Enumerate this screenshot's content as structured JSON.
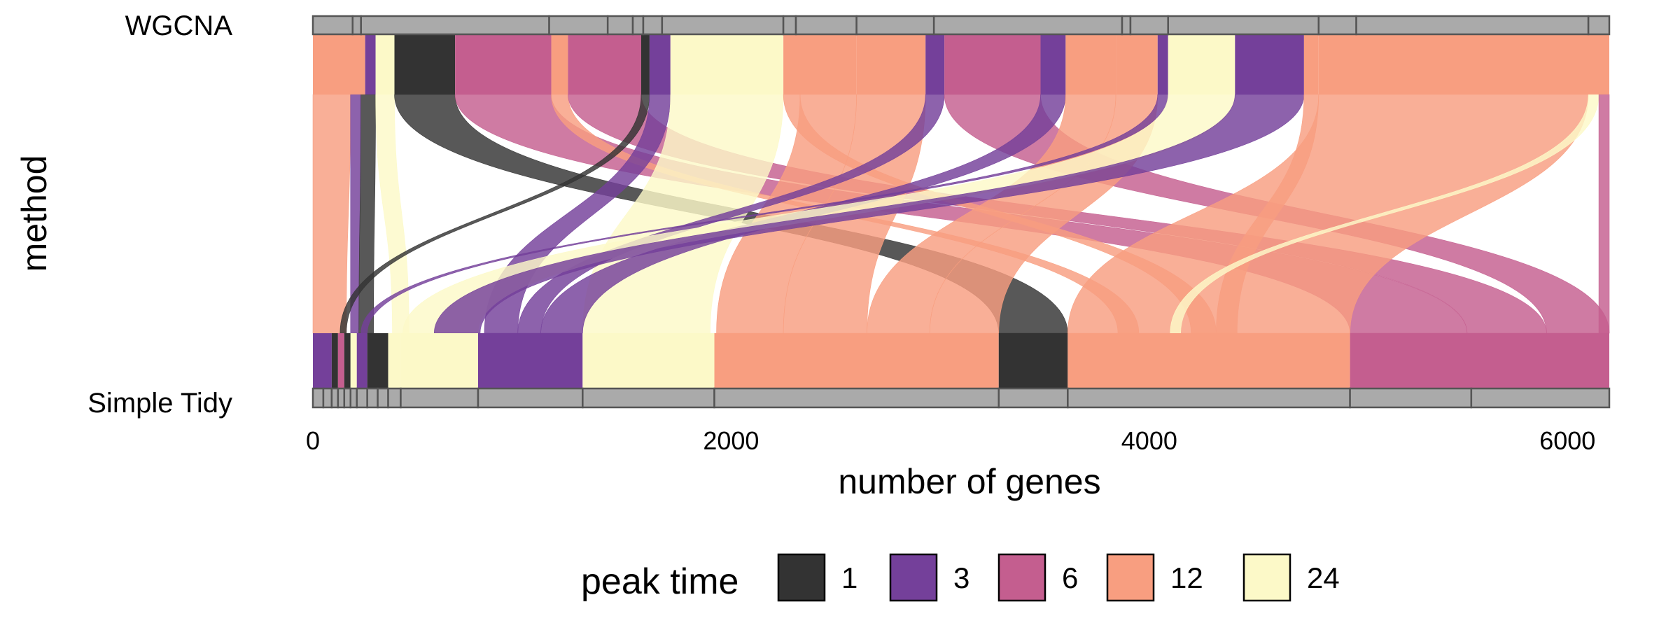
{
  "chart_data": {
    "type": "alluvial",
    "ylabel": "method",
    "xlabel": "number of genes",
    "strata": [
      "WGCNA",
      "Simple Tidy"
    ],
    "x_ticks": [
      0,
      2000,
      4000,
      6000
    ],
    "xlim": [
      0,
      6200
    ],
    "total_genes": 6200,
    "legend": {
      "title": "peak time",
      "placement": "bottom",
      "items": [
        {
          "label": "1",
          "color": "#333333"
        },
        {
          "label": "3",
          "color": "#74409a"
        },
        {
          "label": "6",
          "color": "#c45e8f"
        },
        {
          "label": "12",
          "color": "#f89e80"
        },
        {
          "label": "24",
          "color": "#fcf9c8"
        }
      ]
    },
    "top_modules": [
      {
        "x0": 0,
        "x1": 190
      },
      {
        "x0": 190,
        "x1": 230
      },
      {
        "x0": 230,
        "x1": 1130
      },
      {
        "x0": 1130,
        "x1": 1410
      },
      {
        "x0": 1410,
        "x1": 1530
      },
      {
        "x0": 1530,
        "x1": 1580
      },
      {
        "x0": 1580,
        "x1": 1670
      },
      {
        "x0": 1670,
        "x1": 2250
      },
      {
        "x0": 2250,
        "x1": 2310
      },
      {
        "x0": 2310,
        "x1": 2600
      },
      {
        "x0": 2600,
        "x1": 2970
      },
      {
        "x0": 2970,
        "x1": 3870
      },
      {
        "x0": 3870,
        "x1": 3910
      },
      {
        "x0": 3910,
        "x1": 4090
      },
      {
        "x0": 4090,
        "x1": 4810
      },
      {
        "x0": 4810,
        "x1": 4990
      },
      {
        "x0": 4990,
        "x1": 6100
      },
      {
        "x0": 6100,
        "x1": 6200
      }
    ],
    "bottom_modules": [
      {
        "x0": 0,
        "x1": 50
      },
      {
        "x0": 50,
        "x1": 90
      },
      {
        "x0": 90,
        "x1": 120
      },
      {
        "x0": 120,
        "x1": 150
      },
      {
        "x0": 150,
        "x1": 180
      },
      {
        "x0": 180,
        "x1": 210
      },
      {
        "x0": 210,
        "x1": 260
      },
      {
        "x0": 260,
        "x1": 310
      },
      {
        "x0": 310,
        "x1": 360
      },
      {
        "x0": 360,
        "x1": 420
      },
      {
        "x0": 420,
        "x1": 790
      },
      {
        "x0": 790,
        "x1": 1290
      },
      {
        "x0": 1290,
        "x1": 1920
      },
      {
        "x0": 1920,
        "x1": 3280
      },
      {
        "x0": 3280,
        "x1": 3610
      },
      {
        "x0": 3610,
        "x1": 4960
      },
      {
        "x0": 4960,
        "x1": 5540
      },
      {
        "x0": 5540,
        "x1": 6200
      }
    ],
    "top_color_segments": [
      {
        "x0": 0,
        "x1": 250,
        "peak": "12"
      },
      {
        "x0": 250,
        "x1": 300,
        "peak": "3"
      },
      {
        "x0": 300,
        "x1": 390,
        "peak": "24"
      },
      {
        "x0": 390,
        "x1": 680,
        "peak": "1"
      },
      {
        "x0": 680,
        "x1": 1140,
        "peak": "6"
      },
      {
        "x0": 1140,
        "x1": 1220,
        "peak": "12"
      },
      {
        "x0": 1220,
        "x1": 1570,
        "peak": "6"
      },
      {
        "x0": 1570,
        "x1": 1610,
        "peak": "1"
      },
      {
        "x0": 1610,
        "x1": 1710,
        "peak": "3"
      },
      {
        "x0": 1710,
        "x1": 2250,
        "peak": "24"
      },
      {
        "x0": 2250,
        "x1": 2330,
        "peak": "12"
      },
      {
        "x0": 2330,
        "x1": 2600,
        "peak": "12"
      },
      {
        "x0": 2600,
        "x1": 2930,
        "peak": "12"
      },
      {
        "x0": 2930,
        "x1": 3020,
        "peak": "3"
      },
      {
        "x0": 3020,
        "x1": 3480,
        "peak": "6"
      },
      {
        "x0": 3480,
        "x1": 3600,
        "peak": "3"
      },
      {
        "x0": 3600,
        "x1": 3840,
        "peak": "12"
      },
      {
        "x0": 3840,
        "x1": 4040,
        "peak": "12"
      },
      {
        "x0": 4040,
        "x1": 4090,
        "peak": "3"
      },
      {
        "x0": 4090,
        "x1": 4410,
        "peak": "24"
      },
      {
        "x0": 4410,
        "x1": 4740,
        "peak": "3"
      },
      {
        "x0": 4740,
        "x1": 4810,
        "peak": "12"
      },
      {
        "x0": 4810,
        "x1": 6200,
        "peak": "12"
      }
    ],
    "bottom_color_segments": [
      {
        "x0": 0,
        "x1": 90,
        "peak": "3"
      },
      {
        "x0": 90,
        "x1": 120,
        "peak": "1"
      },
      {
        "x0": 120,
        "x1": 150,
        "peak": "6"
      },
      {
        "x0": 150,
        "x1": 180,
        "peak": "1"
      },
      {
        "x0": 180,
        "x1": 210,
        "peak": "24"
      },
      {
        "x0": 210,
        "x1": 260,
        "peak": "3"
      },
      {
        "x0": 260,
        "x1": 360,
        "peak": "1"
      },
      {
        "x0": 360,
        "x1": 420,
        "peak": "24"
      },
      {
        "x0": 420,
        "x1": 790,
        "peak": "24"
      },
      {
        "x0": 790,
        "x1": 1290,
        "peak": "3"
      },
      {
        "x0": 1290,
        "x1": 1920,
        "peak": "24"
      },
      {
        "x0": 1920,
        "x1": 3280,
        "peak": "12"
      },
      {
        "x0": 3280,
        "x1": 3610,
        "peak": "1"
      },
      {
        "x0": 3610,
        "x1": 4960,
        "peak": "12"
      },
      {
        "x0": 4960,
        "x1": 6200,
        "peak": "6"
      }
    ],
    "flows": [
      {
        "from": [
          0,
          180
        ],
        "to": [
          0,
          160
        ],
        "peak": "12"
      },
      {
        "from": [
          180,
          230
        ],
        "to": [
          180,
          220
        ],
        "peak": "3"
      },
      {
        "from": [
          230,
          300
        ],
        "to": [
          220,
          290
        ],
        "peak": "1"
      },
      {
        "from": [
          300,
          390
        ],
        "to": [
          380,
          460
        ],
        "peak": "24"
      },
      {
        "from": [
          390,
          680
        ],
        "to": [
          3280,
          3610
        ],
        "peak": "1"
      },
      {
        "from": [
          680,
          1140
        ],
        "to": [
          4960,
          5520
        ],
        "peak": "6"
      },
      {
        "from": [
          1140,
          1220
        ],
        "to": [
          3850,
          3950
        ],
        "peak": "12"
      },
      {
        "from": [
          1220,
          1570
        ],
        "to": [
          5520,
          5900
        ],
        "peak": "6"
      },
      {
        "from": [
          1570,
          1610
        ],
        "to": [
          130,
          160
        ],
        "peak": "1"
      },
      {
        "from": [
          1610,
          1710
        ],
        "to": [
          820,
          980
        ],
        "peak": "3"
      },
      {
        "from": [
          1710,
          2250
        ],
        "to": [
          1290,
          1900
        ],
        "peak": "24"
      },
      {
        "from": [
          2250,
          2330
        ],
        "to": [
          4200,
          4320
        ],
        "peak": "12"
      },
      {
        "from": [
          2330,
          2600
        ],
        "to": [
          1930,
          2250
        ],
        "peak": "12"
      },
      {
        "from": [
          2600,
          2930
        ],
        "to": [
          2250,
          2650
        ],
        "peak": "12"
      },
      {
        "from": [
          2930,
          3020
        ],
        "to": [
          980,
          1090
        ],
        "peak": "3"
      },
      {
        "from": [
          3020,
          3480
        ],
        "to": [
          5900,
          6200
        ],
        "peak": "6"
      },
      {
        "from": [
          3480,
          3600
        ],
        "to": [
          1090,
          1290
        ],
        "peak": "3"
      },
      {
        "from": [
          3600,
          3840
        ],
        "to": [
          2650,
          2950
        ],
        "peak": "12"
      },
      {
        "from": [
          3840,
          4040
        ],
        "to": [
          2950,
          3280
        ],
        "peak": "12"
      },
      {
        "from": [
          4040,
          4090
        ],
        "to": [
          230,
          260
        ],
        "peak": "3"
      },
      {
        "from": [
          4090,
          4410
        ],
        "to": [
          430,
          790
        ],
        "peak": "24"
      },
      {
        "from": [
          4410,
          4740
        ],
        "to": [
          580,
          800
        ],
        "peak": "3"
      },
      {
        "from": [
          4740,
          4810
        ],
        "to": [
          4320,
          4420
        ],
        "peak": "12"
      },
      {
        "from": [
          4810,
          6100
        ],
        "to": [
          3610,
          4960
        ],
        "peak": "12"
      },
      {
        "from": [
          6100,
          6150
        ],
        "to": [
          4100,
          4150
        ],
        "peak": "24"
      },
      {
        "from": [
          6150,
          6200
        ],
        "to": [
          6150,
          6200
        ],
        "peak": "6"
      }
    ]
  }
}
